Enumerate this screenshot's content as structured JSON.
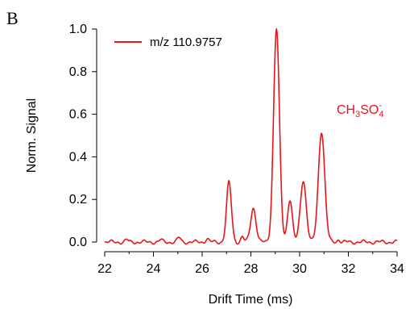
{
  "panel_label": "B",
  "chart_data": {
    "type": "line",
    "xlabel": "Drift Time (ms)",
    "ylabel": "Norm. Signal",
    "xlim": [
      22,
      34
    ],
    "ylim": [
      0,
      1.0
    ],
    "xticks": [
      22,
      24,
      26,
      28,
      30,
      32,
      34
    ],
    "xtick_labels": [
      "22",
      "24",
      "26",
      "28",
      "30",
      "32",
      "34"
    ],
    "yticks": [
      0.0,
      0.2,
      0.4,
      0.6,
      0.8,
      1.0
    ],
    "ytick_labels": [
      "0.0",
      "0.2",
      "0.4",
      "0.6",
      "0.8",
      "1.0"
    ],
    "legend_position": "top-left",
    "grid": false,
    "series": [
      {
        "name": "m/z 110.9757",
        "color": "#e8141b",
        "peaks": [
          {
            "center": 27.1,
            "height": 0.28,
            "width": 0.1
          },
          {
            "center": 27.65,
            "height": 0.025,
            "width": 0.06
          },
          {
            "center": 28.1,
            "height": 0.16,
            "width": 0.11
          },
          {
            "center": 29.05,
            "height": 1.0,
            "width": 0.12
          },
          {
            "center": 29.6,
            "height": 0.2,
            "width": 0.1
          },
          {
            "center": 30.15,
            "height": 0.29,
            "width": 0.12
          },
          {
            "center": 30.9,
            "height": 0.52,
            "width": 0.13
          },
          {
            "center": 25.05,
            "height": 0.02,
            "width": 0.07
          },
          {
            "center": 24.3,
            "height": 0.01,
            "width": 0.06
          },
          {
            "center": 26.2,
            "height": 0.015,
            "width": 0.07
          },
          {
            "center": 31.6,
            "height": 0.012,
            "width": 0.06
          },
          {
            "center": 22.9,
            "height": 0.01,
            "width": 0.06
          }
        ]
      }
    ],
    "annotation": {
      "base_a": "CH",
      "sub_1": "3",
      "base_b": "SO",
      "sub_2": "4",
      "superscript": "-",
      "color": "#e8141b"
    }
  }
}
